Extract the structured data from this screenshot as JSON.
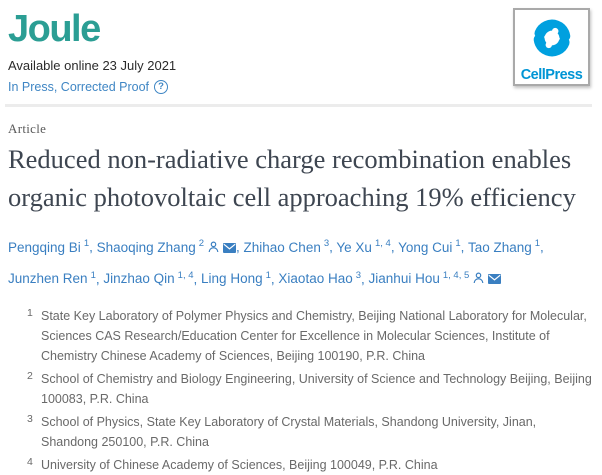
{
  "header": {
    "journal_name": "Joule",
    "available_online": "Available online 23 July 2021",
    "status": "In Press, Corrected Proof",
    "help_glyph": "?",
    "publisher": "CellPress"
  },
  "article": {
    "type_label": "Article",
    "title": "Reduced non-radiative charge recombination enables organic photovoltaic cell approaching 19% efficiency"
  },
  "authors": {
    "separator": ", ",
    "list": [
      {
        "name": "Pengqing Bi",
        "sup": "1",
        "icons": []
      },
      {
        "name": "Shaoqing Zhang",
        "sup": "2",
        "icons": [
          "person",
          "envelope"
        ]
      },
      {
        "name": "Zhihao Chen",
        "sup": "3",
        "icons": []
      },
      {
        "name": "Ye Xu",
        "sup": "1, 4",
        "icons": []
      },
      {
        "name": "Yong Cui",
        "sup": "1",
        "icons": []
      },
      {
        "name": "Tao Zhang",
        "sup": "1",
        "icons": []
      },
      {
        "name": "Junzhen Ren",
        "sup": "1",
        "icons": []
      },
      {
        "name": "Jinzhao Qin",
        "sup": "1, 4",
        "icons": []
      },
      {
        "name": "Ling Hong",
        "sup": "1",
        "icons": []
      },
      {
        "name": "Xiaotao Hao",
        "sup": "3",
        "icons": []
      },
      {
        "name": "Jianhui Hou",
        "sup": "1, 4, 5",
        "icons": [
          "person",
          "envelope"
        ]
      }
    ]
  },
  "affiliations": [
    {
      "num": "1",
      "text": "State Key Laboratory of Polymer Physics and Chemistry, Beijing National Laboratory for Molecular, Sciences CAS Research/Education Center for Excellence in Molecular Sciences, Institute of Chemistry Chinese Academy of Sciences, Beijing 100190, P.R. China"
    },
    {
      "num": "2",
      "text": "School of Chemistry and Biology Engineering, University of Science and Technology Beijing, Beijing 100083, P.R. China"
    },
    {
      "num": "3",
      "text": "School of Physics, State Key Laboratory of Crystal Materials, Shandong University, Jinan, Shandong 250100, P.R. China"
    },
    {
      "num": "4",
      "text": "University of Chinese Academy of Sciences, Beijing 100049, P.R. China"
    }
  ],
  "colors": {
    "journal_teal": "#2b9e94",
    "link_blue": "#3a7fc1",
    "status_blue": "#3f86c4",
    "publisher_blue": "#00a0df",
    "title_color": "#3e4651",
    "body_gray": "#696969",
    "divider_gray": "#ececec",
    "box_border_gray": "#a9a9a9"
  }
}
